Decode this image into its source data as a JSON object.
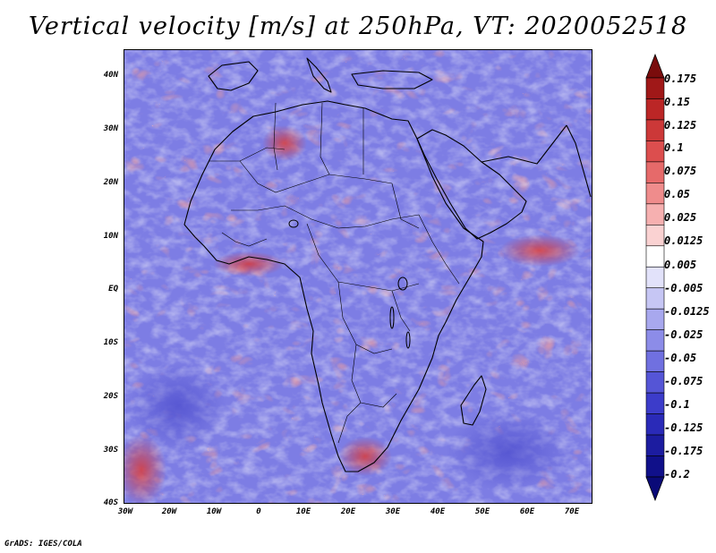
{
  "title": "Vertical velocity [m/s] at 250hPa, VT: 2020052518",
  "credit": "GrADS: IGES/COLA",
  "map": {
    "lon_range": [
      -30,
      75
    ],
    "lat_range": [
      -40,
      45
    ],
    "y_labels": [
      "40N",
      "30N",
      "20N",
      "10N",
      "EQ",
      "10S",
      "20S",
      "30S",
      "40S"
    ],
    "x_labels": [
      "30W",
      "20W",
      "10W",
      "0",
      "10E",
      "20E",
      "30E",
      "40E",
      "50E",
      "60E",
      "70E"
    ]
  },
  "colorbar": {
    "labels": [
      "0.175",
      "0.15",
      "0.125",
      "0.1",
      "0.075",
      "0.05",
      "0.025",
      "0.0125",
      "0.005",
      "-0.005",
      "-0.0125",
      "-0.025",
      "-0.05",
      "-0.075",
      "-0.1",
      "-0.125",
      "-0.175",
      "-0.2"
    ],
    "colors": [
      "#a01818",
      "#bb2626",
      "#cc3838",
      "#dc4e4e",
      "#e66a6a",
      "#ef8c8c",
      "#f6b0b0",
      "#fad2d2",
      "#ffffff",
      "#e2e2fa",
      "#c6c6f4",
      "#a8a8ee",
      "#8c8ce8",
      "#7070e0",
      "#5555d6",
      "#3c3cca",
      "#2a2ab8",
      "#1c1ca0",
      "#10108a"
    ],
    "arrow_top_color": "#7a0c0c",
    "arrow_bottom_color": "#0a0a78"
  },
  "colors": {
    "background": "#ffffff",
    "ascent": "#e05050",
    "descent": "#6a6ae0"
  }
}
